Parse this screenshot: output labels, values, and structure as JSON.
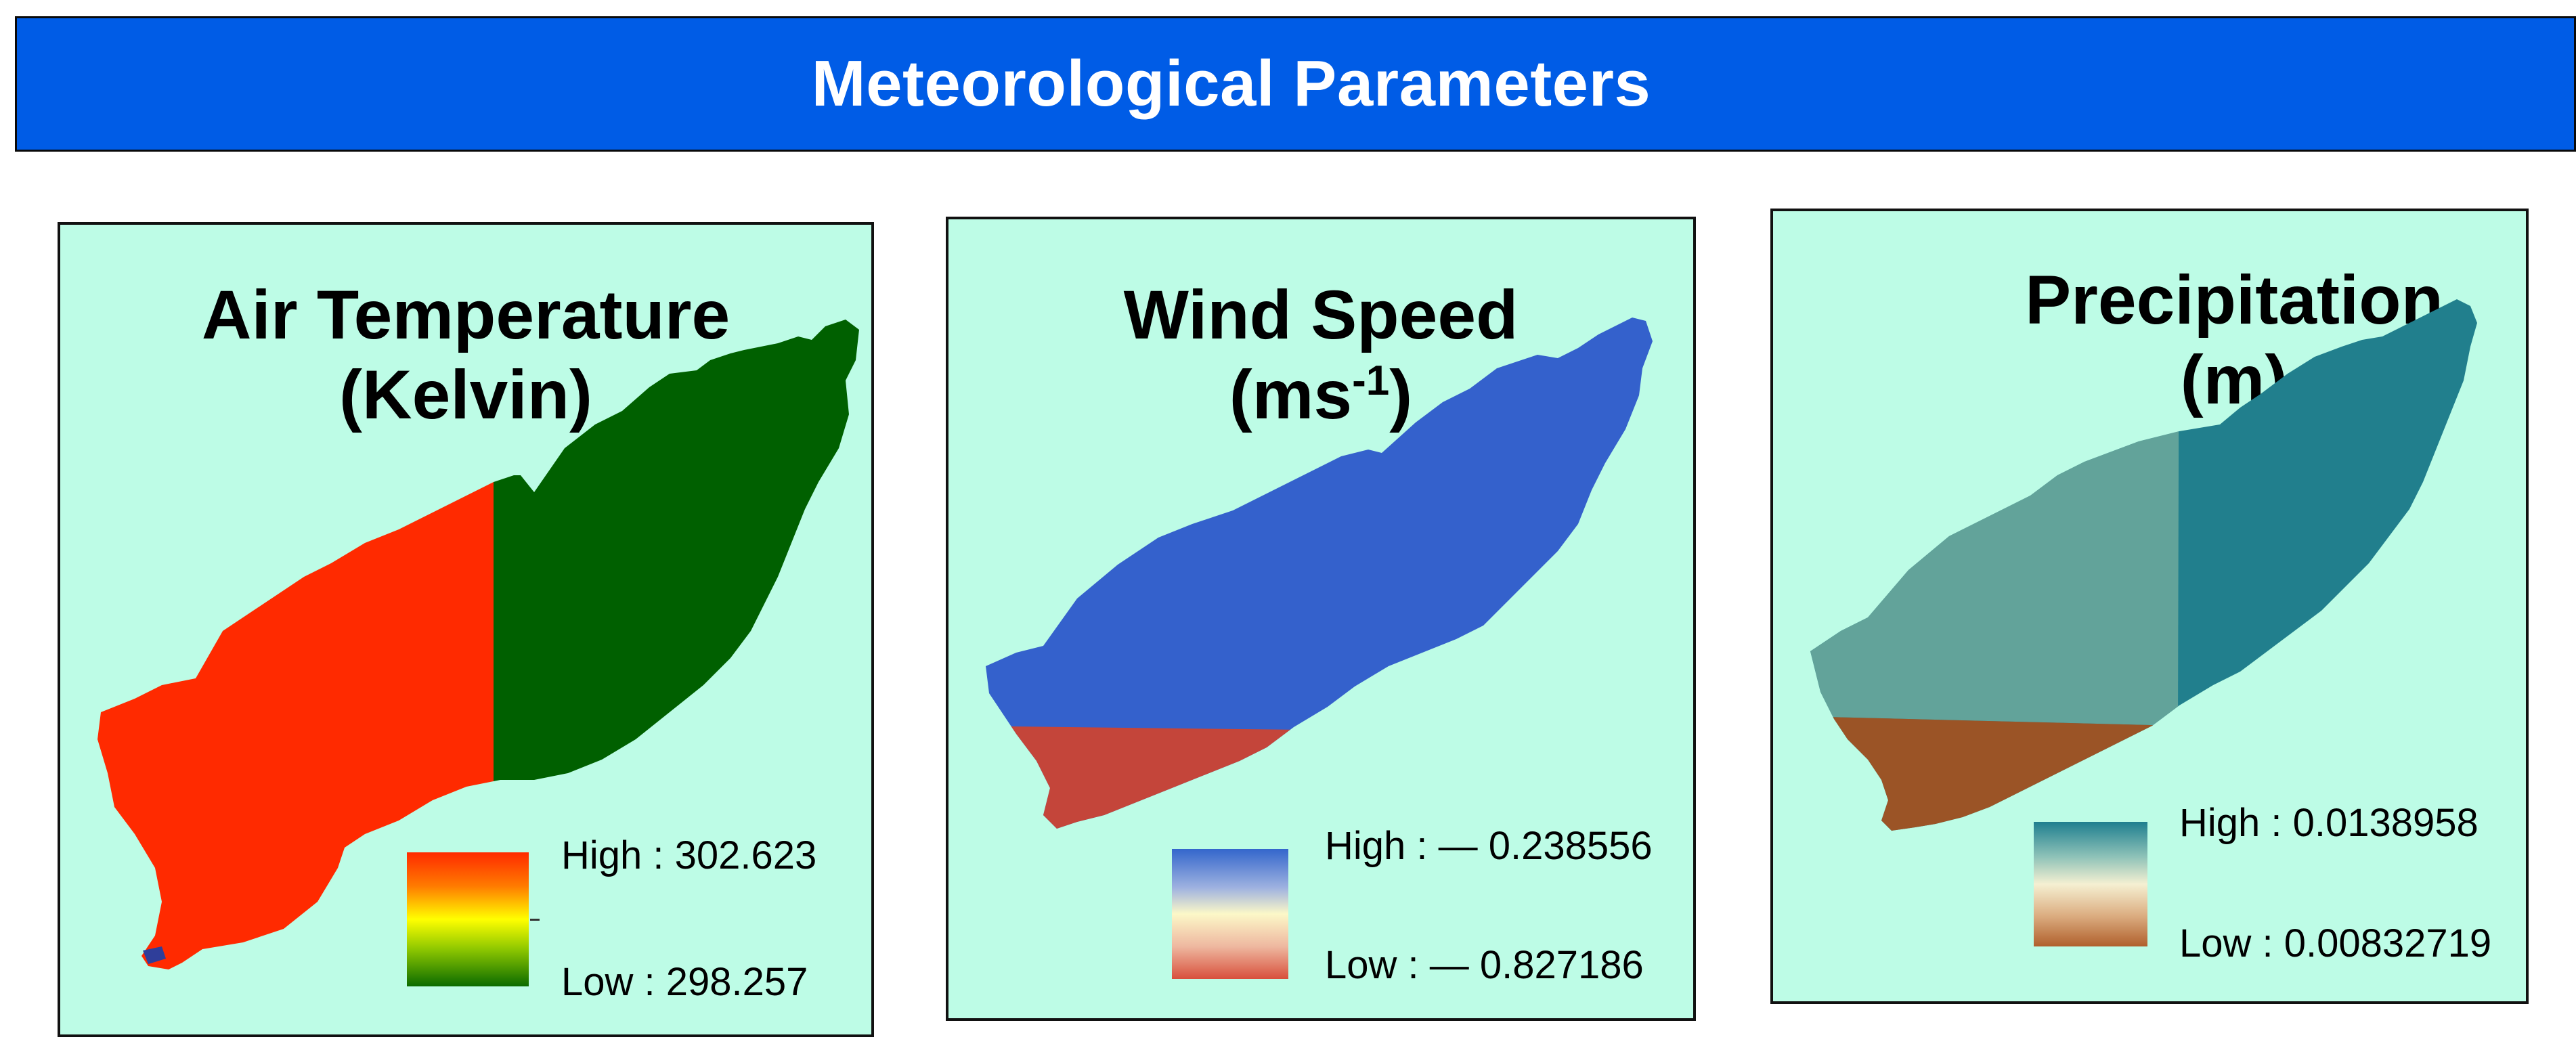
{
  "header": {
    "title": "Meteorological Parameters",
    "color": "#005ce6"
  },
  "panel_background": "#bdfce6",
  "panels": [
    {
      "id": "air-temperature",
      "title_line1": "Air Temperature",
      "title_line2": "(Kelvin)",
      "legend": {
        "high_label": "High : 302.623",
        "low_label": "Low : 298.257",
        "ramp_colors": [
          "#ff2a00",
          "#ffff00",
          "#0b6b00"
        ]
      },
      "zones": [
        {
          "name": "western-zone",
          "color": "#ff2a00"
        },
        {
          "name": "eastern-zone",
          "color": "#006000"
        }
      ]
    },
    {
      "id": "wind-speed",
      "title_line1": "Wind Speed",
      "title_line2_main": "(ms",
      "title_line2_sup": "-1",
      "title_line2_end": ")",
      "legend": {
        "high_label": "High : — 0.238556",
        "low_label": "Low : — 0.827186",
        "ramp_colors": [
          "#3366cc",
          "#fcf8c8",
          "#d8503c"
        ]
      },
      "zones": [
        {
          "name": "northern-zone",
          "color": "#3461cc"
        },
        {
          "name": "southern-zone",
          "color": "#c4453a"
        }
      ]
    },
    {
      "id": "precipitation",
      "title_line1": "Precipitation",
      "title_line2": "(m)",
      "legend": {
        "high_label": "High : 0.0138958",
        "low_label": "Low : 0.00832719",
        "ramp_colors": [
          "#1f7f8f",
          "#f5f0d2",
          "#b0602c"
        ]
      },
      "zones": [
        {
          "name": "eastern-zone",
          "color": "#217f8d"
        },
        {
          "name": "central-zone",
          "color": "#62a39a"
        },
        {
          "name": "southern-zone",
          "color": "#9b5426"
        }
      ]
    }
  ]
}
